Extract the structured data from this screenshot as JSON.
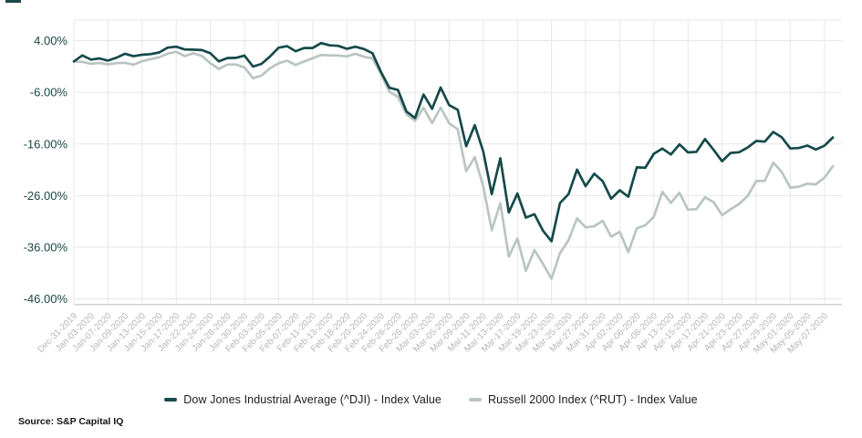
{
  "chart_data": {
    "type": "line",
    "title": "",
    "xlabel": "",
    "ylabel": "",
    "ylim": [
      -47.1,
      8
    ],
    "grid": true,
    "legend_position": "bottom",
    "y_ticks": [
      {
        "value": 4,
        "label": "4.00%"
      },
      {
        "value": -6,
        "label": "-6.00%"
      },
      {
        "value": -16,
        "label": "-16.00%"
      },
      {
        "value": -26,
        "label": "-26.00%"
      },
      {
        "value": -36,
        "label": "-36.00%"
      },
      {
        "value": -46,
        "label": "-46.00%"
      }
    ],
    "x_tick_labels": [
      "Dec-31-2019",
      "Jan-03-2020",
      "Jan-07-2020",
      "Jan-09-2020",
      "Jan-13-2020",
      "Jan-15-2020",
      "Jan-17-2020",
      "Jan-22-2020",
      "Jan-24-2020",
      "Jan-28-2020",
      "Jan-30-2020",
      "Feb-03-2020",
      "Feb-05-2020",
      "Feb-07-2020",
      "Feb-11-2020",
      "Feb-13-2020",
      "Feb-18-2020",
      "Feb-20-2020",
      "Feb-24-2020",
      "Feb-26-2020",
      "Feb-28-2020",
      "Mar-03-2020",
      "Mar-05-2020",
      "Mar-09-2020",
      "Mar-11-2020",
      "Mar-13-2020",
      "Mar-17-2020",
      "Mar-19-2020",
      "Mar-23-2020",
      "Mar-25-2020",
      "Mar-27-2020",
      "Mar-31-2020",
      "Apr-02-2020",
      "Apr-06-2020",
      "Apr-08-2020",
      "Apr-13-2020",
      "Apr-15-2020",
      "Apr-17-2020",
      "Apr-21-2020",
      "Apr-23-2020",
      "Apr-27-2020",
      "Apr-29-2020",
      "May-01-2020",
      "May-05-2020",
      "May-07-2020"
    ],
    "labels_every_n_points": 2,
    "gridline_every_n_points": 4,
    "series": [
      {
        "name": "Dow Jones Industrial Average (^DJI) - Index Value",
        "color": "#164a4b",
        "values": [
          0.0,
          1.16,
          0.34,
          0.58,
          0.16,
          0.72,
          1.47,
          1.0,
          1.29,
          1.41,
          1.72,
          2.66,
          2.84,
          2.3,
          2.27,
          2.18,
          1.58,
          -0.01,
          0.65,
          0.69,
          1.12,
          -0.99,
          -0.49,
          0.94,
          2.64,
          2.95,
          1.98,
          2.59,
          2.59,
          3.55,
          3.1,
          3.01,
          2.43,
          2.84,
          2.39,
          1.59,
          -2.02,
          -5.11,
          -5.54,
          -9.71,
          -10.96,
          -6.43,
          -9.18,
          -5.07,
          -8.47,
          -9.37,
          -16.43,
          -12.34,
          -17.47,
          -25.71,
          -18.76,
          -29.26,
          -25.58,
          -30.27,
          -29.61,
          -32.81,
          -34.85,
          -27.45,
          -25.71,
          -20.98,
          -24.18,
          -21.76,
          -23.2,
          -26.61,
          -24.97,
          -26.23,
          -20.53,
          -20.62,
          -17.89,
          -16.89,
          -18.04,
          -16.08,
          -17.64,
          -17.52,
          -15.05,
          -17.13,
          -19.34,
          -17.74,
          -17.6,
          -16.69,
          -15.43,
          -15.55,
          -13.68,
          -14.69,
          -16.87,
          -16.78,
          -16.31,
          -17.08,
          -16.34,
          -14.74
        ]
      },
      {
        "name": "Russell 2000 Index (^RUT) - Index Value",
        "color": "#b9c5c2",
        "values": [
          0.0,
          -0.1,
          -0.46,
          -0.31,
          -0.58,
          -0.35,
          -0.27,
          -0.65,
          0.03,
          0.43,
          0.81,
          1.5,
          1.87,
          1.01,
          1.59,
          1.05,
          -0.37,
          -1.46,
          -0.63,
          -0.6,
          -1.17,
          -3.26,
          -2.74,
          -1.33,
          -0.36,
          0.13,
          -0.7,
          -0.02,
          0.62,
          1.25,
          1.16,
          1.15,
          0.96,
          1.47,
          0.9,
          0.61,
          -2.42,
          -5.89,
          -6.87,
          -10.25,
          -11.51,
          -8.99,
          -11.95,
          -8.95,
          -11.99,
          -13.14,
          -21.28,
          -18.55,
          -24.22,
          -32.7,
          -27.47,
          -37.82,
          -34.31,
          -40.59,
          -36.54,
          -39.23,
          -42.09,
          -37.17,
          -34.62,
          -30.42,
          -32.16,
          -31.94,
          -30.89,
          -33.94,
          -33.01,
          -36.95,
          -32.34,
          -31.75,
          -30.11,
          -25.28,
          -27.4,
          -25.45,
          -28.74,
          -28.63,
          -26.33,
          -27.26,
          -29.78,
          -28.67,
          -27.62,
          -26.1,
          -23.2,
          -23.14,
          -19.59,
          -21.44,
          -24.46,
          -24.28,
          -23.7,
          -23.83,
          -22.52,
          -20.31
        ]
      }
    ]
  },
  "legend": {
    "items": [
      {
        "label": "Dow Jones Industrial Average (^DJI) - Index Value",
        "color": "#164a4b"
      },
      {
        "label": "Russell 2000 Index (^RUT) - Index Value",
        "color": "#b9c5c2"
      }
    ]
  },
  "source": {
    "label": "Source: S&P Capital IQ"
  },
  "colors": {
    "dji_line": "#164a4b",
    "rut_line": "#b9c5c2",
    "y_tick_text": "#1b4646",
    "x_tick_text": "#b5b5b5",
    "gridline": "#e7e7e7",
    "axis_line": "#cfcfcf",
    "legend_text": "#1c1c1c",
    "source_text": "#141414"
  }
}
